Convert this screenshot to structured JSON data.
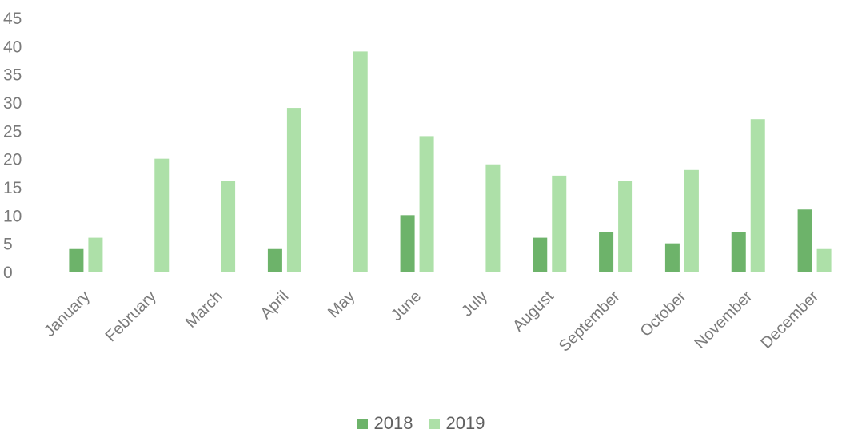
{
  "chart_data": {
    "type": "bar",
    "categories": [
      "January",
      "February",
      "March",
      "April",
      "May",
      "June",
      "July",
      "August",
      "September",
      "October",
      "November",
      "December"
    ],
    "series": [
      {
        "name": "2018",
        "color": "#6db36a",
        "values": [
          4,
          0,
          0,
          4,
          0,
          10,
          0,
          6,
          7,
          5,
          7,
          11
        ]
      },
      {
        "name": "2019",
        "color": "#ade0a8",
        "values": [
          6,
          20,
          16,
          29,
          39,
          24,
          19,
          17,
          16,
          18,
          27,
          4
        ]
      }
    ],
    "yticks": [
      "0",
      "5",
      "10",
      "15",
      "20",
      "25",
      "30",
      "35",
      "40",
      "45"
    ],
    "ylim": [
      0,
      45
    ],
    "grid": false,
    "legend_position": "bottom"
  }
}
